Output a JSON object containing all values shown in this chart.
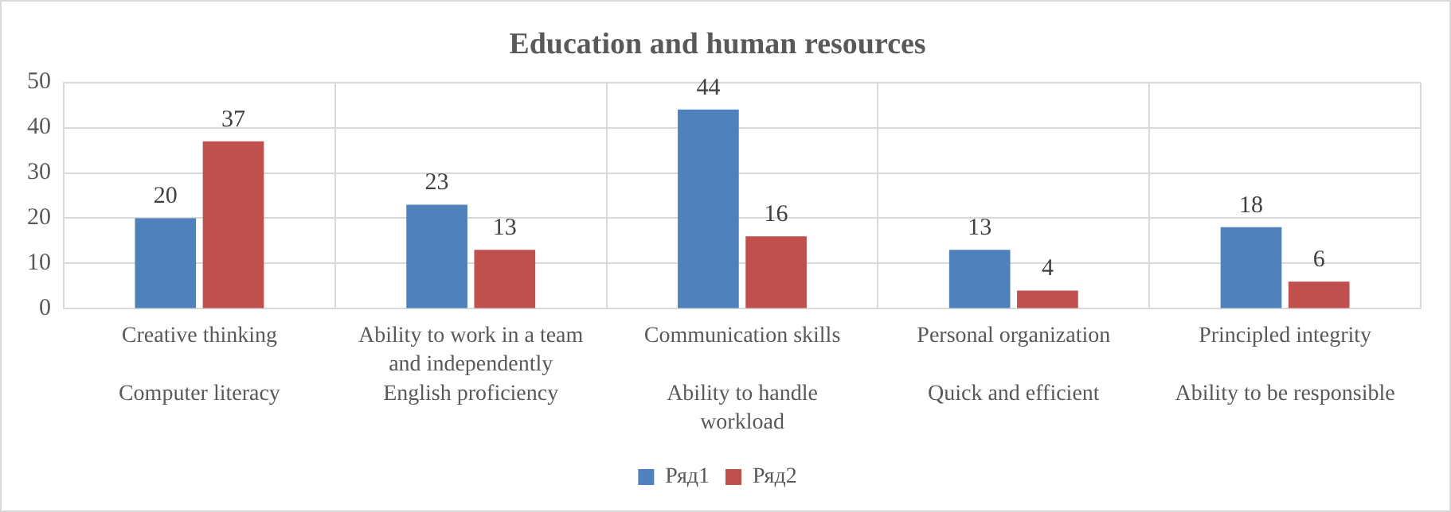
{
  "chart_data": {
    "type": "bar",
    "title": "Education and human resources",
    "categories": [
      "Creative thinking\nComputer literacy",
      "Ability to work in a team and independently\nEnglish proficiency",
      "Communication skills\nAbility to handle workload",
      "Personal organization\nQuick and efficient",
      "Principled integrity\nAbility to be responsible"
    ],
    "series": [
      {
        "name": "Ряд1",
        "color": "#4f81bd",
        "values": [
          20,
          23,
          44,
          13,
          18
        ]
      },
      {
        "name": "Ряд2",
        "color": "#c0504d",
        "values": [
          37,
          13,
          16,
          4,
          6
        ]
      }
    ],
    "ylim": [
      0,
      50
    ],
    "yticks": [
      0,
      10,
      20,
      30,
      40,
      50
    ],
    "grid": true,
    "legend": "bottom",
    "data_labels": true
  }
}
